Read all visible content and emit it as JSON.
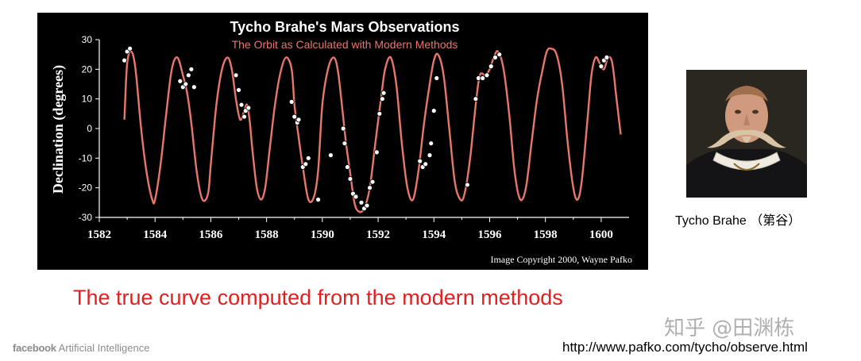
{
  "chart_data": {
    "type": "line",
    "title": "Tycho Brahe's Mars Observations",
    "subtitle": "The Orbit as Calculated with Modern Methods",
    "ylabel": "Declination (degrees)",
    "xlabel": "",
    "xlim": [
      1582,
      1601
    ],
    "ylim": [
      -30,
      30
    ],
    "x_ticks": [
      1582,
      1584,
      1586,
      1588,
      1590,
      1592,
      1594,
      1596,
      1598,
      1600
    ],
    "y_ticks": [
      30,
      20,
      10,
      0,
      -10,
      -20,
      -30
    ],
    "grid": false,
    "legend": "none",
    "copyright": "Image Copyright 2000, Wayne Pafko",
    "series": [
      {
        "kind": "line",
        "color": "#e8776b",
        "x": [
          1582.9,
          1583.0,
          1583.15,
          1583.3,
          1583.5,
          1583.7,
          1583.9,
          1584.0,
          1584.2,
          1584.4,
          1584.6,
          1584.8,
          1585.0,
          1585.15,
          1585.3,
          1585.5,
          1585.7,
          1585.9,
          1586.0,
          1586.2,
          1586.4,
          1586.6,
          1586.75,
          1586.9,
          1587.05,
          1587.2,
          1587.3,
          1587.4,
          1587.5,
          1587.65,
          1587.8,
          1587.95,
          1588.1,
          1588.3,
          1588.5,
          1588.7,
          1588.9,
          1589.0,
          1589.15,
          1589.3,
          1589.5,
          1589.7,
          1589.85,
          1590.0,
          1590.2,
          1590.4,
          1590.55,
          1590.7,
          1590.85,
          1591.0,
          1591.15,
          1591.3,
          1591.5,
          1591.7,
          1591.9,
          1592.1,
          1592.25,
          1592.45,
          1592.65,
          1592.85,
          1593.05,
          1593.25,
          1593.45,
          1593.65,
          1593.85,
          1594.0,
          1594.15,
          1594.35,
          1594.55,
          1594.75,
          1594.95,
          1595.1,
          1595.3,
          1595.5,
          1595.65,
          1595.85,
          1596.0,
          1596.15,
          1596.3,
          1596.5,
          1596.7,
          1596.9,
          1597.1,
          1597.3,
          1597.5,
          1597.7,
          1597.9,
          1598.05,
          1598.2,
          1598.4,
          1598.6,
          1598.8,
          1599.0,
          1599.15,
          1599.3,
          1599.5,
          1599.65,
          1599.8,
          1599.95,
          1600.1,
          1600.25,
          1600.4,
          1600.55,
          1600.7
        ],
        "y": [
          3,
          22,
          26,
          20,
          0,
          -15,
          -24,
          -24,
          -12,
          5,
          20,
          24,
          18,
          12,
          2,
          -15,
          -24,
          -22,
          -12,
          8,
          20,
          24,
          20,
          10,
          3,
          6,
          8,
          2,
          -8,
          -20,
          -24,
          -20,
          -8,
          8,
          19,
          24,
          20,
          8,
          -3,
          -13,
          -24,
          -23,
          -14,
          8,
          20,
          24,
          20,
          8,
          -5,
          -15,
          -25,
          -28,
          -27,
          -20,
          -5,
          10,
          20,
          24,
          15,
          -5,
          -20,
          -24,
          -14,
          2,
          15,
          23,
          25,
          18,
          0,
          -18,
          -24,
          -22,
          -10,
          8,
          18,
          18,
          20,
          24,
          26,
          20,
          5,
          -15,
          -24,
          -20,
          -5,
          10,
          20,
          26,
          27,
          25,
          15,
          -5,
          -20,
          -24,
          -18,
          2,
          18,
          24,
          22,
          20,
          24,
          22,
          10,
          -2
        ]
      },
      {
        "kind": "scatter",
        "color": "#ffffff",
        "x": [
          1582.9,
          1583.0,
          1583.1,
          1584.9,
          1585.0,
          1585.1,
          1585.2,
          1585.3,
          1585.4,
          1586.9,
          1587.0,
          1587.1,
          1587.2,
          1587.25,
          1587.35,
          1588.9,
          1589.0,
          1589.1,
          1589.15,
          1589.3,
          1589.4,
          1589.5,
          1589.85,
          1590.3,
          1590.75,
          1590.8,
          1590.9,
          1591.0,
          1591.1,
          1591.2,
          1591.4,
          1591.5,
          1591.6,
          1591.7,
          1591.8,
          1591.95,
          1592.05,
          1592.15,
          1592.2,
          1593.5,
          1593.6,
          1593.7,
          1593.85,
          1593.9,
          1594.0,
          1594.1,
          1595.2,
          1595.5,
          1595.6,
          1595.75,
          1595.9,
          1596.05,
          1596.2,
          1596.35,
          1600.0,
          1600.1,
          1600.2
        ],
        "y": [
          23,
          26,
          27,
          16,
          14,
          15,
          18,
          20,
          14,
          18,
          13,
          8,
          4,
          6,
          7,
          9,
          4,
          2,
          3,
          -13,
          -12,
          -10,
          -24,
          -9,
          0,
          -5,
          -13,
          -17,
          -22,
          -23,
          -25,
          -27,
          -26,
          -20,
          -18,
          -8,
          5,
          10,
          12,
          -11,
          -13,
          -12,
          -9,
          -5,
          6,
          17,
          -19,
          10,
          17,
          17,
          18,
          21,
          24,
          25,
          21,
          23,
          24
        ]
      }
    ]
  },
  "portrait": {
    "icon": "tycho-brahe-portrait",
    "caption": "Tycho Brahe （第谷）"
  },
  "headline": "The true curve computed from the modern methods",
  "watermark": "知乎 @田渊栋",
  "footer": {
    "brand_bold": "facebook",
    "brand_rest": " Artificial Intelligence",
    "source_url": "http://www.pafko.com/tycho/observe.html"
  }
}
